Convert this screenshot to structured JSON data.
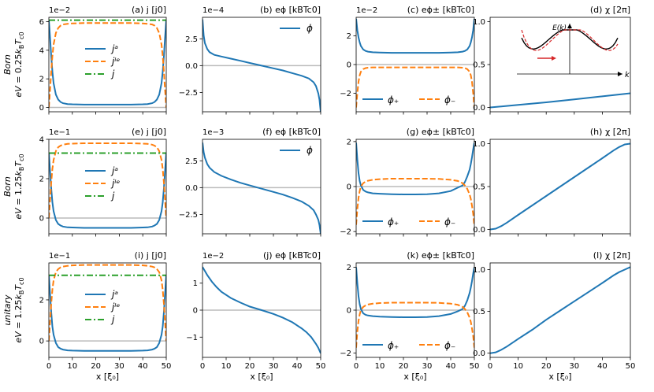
{
  "colors": {
    "ja": "#1f77b4",
    "jle": "#ff7f0e",
    "j": "#2ca02c",
    "zero": "#bbbbbb",
    "inset_black": "#000000",
    "inset_red": "#d62728",
    "arrow": "#d62728"
  },
  "x_axis": {
    "label": "x [ξ₀]",
    "ticks": [
      0,
      10,
      20,
      30,
      40,
      50
    ]
  },
  "rows": [
    {
      "ylabel_line1": "Born",
      "ylabel_line2": "eV = 0.25k B T c0"
    },
    {
      "ylabel_line1": "Born",
      "ylabel_line2": "eV = 1.25kBTc0"
    },
    {
      "ylabel_line1": "unitary",
      "ylabel_line2": "eV = 1.25kBTc0"
    }
  ],
  "row_labels": [
    {
      "line1": "Born",
      "line2_pre": "eV = 0.25",
      "line2_post": ""
    },
    {
      "line1": "Born",
      "line2_pre": "eV = 1.25",
      "line2_post": ""
    },
    {
      "line1": "unitary",
      "line2_pre": "eV = 1.25",
      "line2_post": ""
    }
  ],
  "chart_data": [
    {
      "id": "a",
      "title": "(a) j [j0]",
      "type": "line",
      "exponent": "1e−2",
      "xlim": [
        0,
        50
      ],
      "ylim": [
        -0.3,
        6.3
      ],
      "yticks": [
        0,
        2,
        4,
        6
      ],
      "x": [
        0,
        0.5,
        1,
        1.5,
        2,
        3,
        4,
        5,
        6,
        8,
        10,
        15,
        20,
        25,
        30,
        35,
        40,
        42,
        44,
        45,
        46,
        47,
        48,
        48.5,
        49,
        49.5,
        50
      ],
      "series": [
        {
          "name": "ja",
          "label": "jᵃ",
          "style": "solid",
          "y": [
            6.1,
            4.9,
            3.6,
            2.5,
            1.7,
            0.9,
            0.55,
            0.38,
            0.3,
            0.24,
            0.22,
            0.2,
            0.2,
            0.2,
            0.2,
            0.2,
            0.22,
            0.24,
            0.3,
            0.38,
            0.55,
            0.9,
            1.7,
            2.5,
            3.6,
            4.9,
            6.1
          ]
        },
        {
          "name": "jle",
          "label": "jˡᵉ",
          "style": "dashed",
          "y": [
            0,
            1.2,
            2.5,
            3.6,
            4.4,
            5.2,
            5.55,
            5.72,
            5.8,
            5.85,
            5.87,
            5.9,
            5.9,
            5.9,
            5.9,
            5.9,
            5.87,
            5.85,
            5.8,
            5.72,
            5.55,
            5.2,
            4.4,
            3.6,
            2.5,
            1.2,
            0
          ]
        },
        {
          "name": "j",
          "label": "j",
          "style": "dashdot",
          "y": [
            6.1,
            6.1,
            6.1,
            6.1,
            6.1,
            6.1,
            6.1,
            6.1,
            6.1,
            6.1,
            6.1,
            6.1,
            6.1,
            6.1,
            6.1,
            6.1,
            6.1,
            6.1,
            6.1,
            6.1,
            6.1,
            6.1,
            6.1,
            6.1,
            6.1,
            6.1,
            6.1
          ]
        }
      ],
      "legend": "center-left"
    },
    {
      "id": "b",
      "title": "(b) eϕ [kBTc0]",
      "type": "line",
      "exponent": "1e−4",
      "xlim": [
        0,
        50
      ],
      "ylim": [
        -4.3,
        4.5
      ],
      "yticks": [
        -2.5,
        0.0,
        2.5
      ],
      "x": [
        0,
        0.5,
        1,
        2,
        3,
        5,
        8,
        12,
        16,
        20,
        25,
        30,
        34,
        38,
        42,
        45,
        47,
        48,
        49,
        49.5,
        50
      ],
      "series": [
        {
          "name": "phi",
          "label": "ϕ",
          "style": "solid",
          "y": [
            4.3,
            2.8,
            2.1,
            1.55,
            1.25,
            1.0,
            0.85,
            0.65,
            0.45,
            0.25,
            0.0,
            -0.25,
            -0.45,
            -0.7,
            -0.95,
            -1.2,
            -1.55,
            -1.9,
            -2.6,
            -3.2,
            -4.3
          ]
        }
      ],
      "legend": "upper-right"
    },
    {
      "id": "c",
      "title": "(c) eϕ± [kBTc0]",
      "type": "line",
      "exponent": "1e−2",
      "xlim": [
        0,
        50
      ],
      "ylim": [
        -3.3,
        3.3
      ],
      "yticks": [
        -2,
        0,
        2
      ],
      "x": [
        0,
        0.5,
        1,
        1.5,
        2,
        3,
        4,
        5,
        7,
        10,
        15,
        20,
        25,
        30,
        35,
        40,
        43,
        45,
        46,
        47,
        48,
        48.5,
        49,
        49.5,
        50
      ],
      "series": [
        {
          "name": "phi_plus",
          "label": "ϕ₊",
          "style": "solid",
          "y": [
            3.2,
            2.4,
            1.9,
            1.55,
            1.3,
            1.05,
            0.95,
            0.9,
            0.86,
            0.84,
            0.82,
            0.82,
            0.82,
            0.82,
            0.82,
            0.84,
            0.86,
            0.9,
            0.95,
            1.05,
            1.3,
            1.55,
            1.9,
            2.4,
            3.2
          ]
        },
        {
          "name": "phi_minus",
          "label": "ϕ₋",
          "style": "dashed",
          "y": [
            -3.0,
            -2.0,
            -1.2,
            -0.75,
            -0.5,
            -0.32,
            -0.25,
            -0.22,
            -0.2,
            -0.2,
            -0.2,
            -0.2,
            -0.2,
            -0.2,
            -0.2,
            -0.2,
            -0.2,
            -0.22,
            -0.25,
            -0.32,
            -0.5,
            -0.75,
            -1.2,
            -2.0,
            -3.0
          ]
        }
      ],
      "legend": "lower-center"
    },
    {
      "id": "d",
      "title": "(d) χ [2π]",
      "type": "line",
      "exponent": "",
      "xlim": [
        0,
        50
      ],
      "ylim": [
        -0.05,
        1.05
      ],
      "yticks": [
        0.0,
        0.5,
        1.0
      ],
      "x": [
        0,
        10,
        20,
        30,
        40,
        50
      ],
      "series": [
        {
          "name": "chi",
          "label": "",
          "style": "solid",
          "y": [
            0.0,
            0.03,
            0.06,
            0.095,
            0.13,
            0.165
          ]
        }
      ],
      "legend": "none",
      "inset": {
        "ylabel": "E(k)",
        "xlabel": "k"
      }
    },
    {
      "id": "e",
      "title": "(e) j [j0]",
      "type": "line",
      "exponent": "1e−1",
      "xlim": [
        0,
        50
      ],
      "ylim": [
        -0.8,
        4.0
      ],
      "yticks": [
        0,
        2,
        4
      ],
      "x": [
        0,
        0.5,
        1,
        1.5,
        2,
        3,
        4,
        5,
        6,
        8,
        10,
        15,
        20,
        25,
        30,
        35,
        40,
        42,
        44,
        45,
        46,
        47,
        48,
        48.5,
        49,
        49.5,
        50
      ],
      "series": [
        {
          "name": "ja",
          "label": "jᵃ",
          "style": "solid",
          "y": [
            3.3,
            2.4,
            1.5,
            0.8,
            0.35,
            -0.1,
            -0.3,
            -0.38,
            -0.43,
            -0.47,
            -0.48,
            -0.5,
            -0.5,
            -0.5,
            -0.5,
            -0.5,
            -0.48,
            -0.47,
            -0.43,
            -0.38,
            -0.3,
            -0.1,
            0.35,
            0.8,
            1.5,
            2.4,
            3.3
          ]
        },
        {
          "name": "jle",
          "label": "jˡᵉ",
          "style": "dashed",
          "y": [
            0,
            0.9,
            1.8,
            2.5,
            2.95,
            3.4,
            3.6,
            3.68,
            3.73,
            3.77,
            3.78,
            3.8,
            3.8,
            3.8,
            3.8,
            3.8,
            3.78,
            3.77,
            3.73,
            3.68,
            3.6,
            3.4,
            2.95,
            2.5,
            1.8,
            0.9,
            0
          ]
        },
        {
          "name": "j",
          "label": "j",
          "style": "dashdot",
          "y": [
            3.3,
            3.3,
            3.3,
            3.3,
            3.3,
            3.3,
            3.3,
            3.3,
            3.3,
            3.3,
            3.3,
            3.3,
            3.3,
            3.3,
            3.3,
            3.3,
            3.3,
            3.3,
            3.3,
            3.3,
            3.3,
            3.3,
            3.3,
            3.3,
            3.3,
            3.3,
            3.3
          ]
        }
      ],
      "legend": "center-left"
    },
    {
      "id": "f",
      "title": "(f) eϕ [kBTc0]",
      "type": "line",
      "exponent": "1e−3",
      "xlim": [
        0,
        50
      ],
      "ylim": [
        -4.3,
        4.5
      ],
      "yticks": [
        -2.5,
        0.0,
        2.5
      ],
      "x": [
        0,
        0.5,
        1,
        2,
        3,
        5,
        8,
        12,
        16,
        20,
        25,
        30,
        34,
        38,
        42,
        45,
        47,
        48,
        49,
        49.5,
        50
      ],
      "series": [
        {
          "name": "phi",
          "label": "ϕ",
          "style": "solid",
          "y": [
            4.2,
            3.3,
            2.8,
            2.2,
            1.85,
            1.45,
            1.1,
            0.75,
            0.45,
            0.2,
            -0.1,
            -0.4,
            -0.65,
            -0.95,
            -1.3,
            -1.7,
            -2.1,
            -2.5,
            -3.0,
            -3.5,
            -4.3
          ]
        }
      ],
      "legend": "upper-right"
    },
    {
      "id": "g",
      "title": "(g) eϕ± [kBTc0]",
      "type": "line",
      "exponent": "",
      "xlim": [
        0,
        50
      ],
      "ylim": [
        -2.1,
        2.1
      ],
      "yticks": [
        -2,
        0,
        2
      ],
      "x": [
        0,
        0.5,
        1,
        1.5,
        2,
        3,
        4,
        5,
        7,
        10,
        15,
        20,
        25,
        30,
        35,
        40,
        43,
        45,
        46,
        47,
        48,
        48.5,
        49,
        49.5,
        50
      ],
      "series": [
        {
          "name": "phi_plus",
          "label": "ϕ₊",
          "style": "solid",
          "y": [
            1.95,
            1.2,
            0.6,
            0.25,
            0.05,
            -0.15,
            -0.22,
            -0.26,
            -0.3,
            -0.32,
            -0.34,
            -0.35,
            -0.35,
            -0.34,
            -0.3,
            -0.2,
            -0.05,
            0.05,
            0.2,
            0.45,
            0.75,
            1.0,
            1.3,
            1.65,
            1.95
          ]
        },
        {
          "name": "phi_minus",
          "label": "ϕ₋",
          "style": "dashed",
          "y": [
            -1.7,
            -1.0,
            -0.5,
            -0.2,
            0.0,
            0.15,
            0.22,
            0.26,
            0.3,
            0.33,
            0.35,
            0.35,
            0.35,
            0.35,
            0.34,
            0.3,
            0.25,
            0.15,
            0.05,
            -0.1,
            -0.35,
            -0.55,
            -0.85,
            -1.2,
            -1.75
          ]
        }
      ],
      "legend": "lower-center"
    },
    {
      "id": "h",
      "title": "(h) χ [2π]",
      "type": "line",
      "exponent": "",
      "xlim": [
        0,
        50
      ],
      "ylim": [
        -0.05,
        1.05
      ],
      "yticks": [
        0.0,
        0.5,
        1.0
      ],
      "x": [
        0,
        2,
        4,
        6,
        10,
        15,
        20,
        25,
        30,
        35,
        40,
        44,
        46,
        48,
        50
      ],
      "series": [
        {
          "name": "chi",
          "label": "",
          "style": "solid",
          "y": [
            0.0,
            0.01,
            0.04,
            0.08,
            0.17,
            0.28,
            0.39,
            0.5,
            0.61,
            0.72,
            0.83,
            0.92,
            0.96,
            0.99,
            1.0
          ]
        }
      ],
      "legend": "none"
    },
    {
      "id": "i",
      "title": "(i) j [j0]",
      "type": "line",
      "exponent": "1e−1",
      "xlim": [
        0,
        50
      ],
      "ylim": [
        -0.8,
        3.8
      ],
      "yticks": [
        0,
        2
      ],
      "x": [
        0,
        0.5,
        1,
        1.5,
        2,
        3,
        4,
        5,
        6,
        8,
        10,
        15,
        20,
        25,
        30,
        35,
        40,
        42,
        44,
        45,
        46,
        47,
        48,
        48.5,
        49,
        49.5,
        50
      ],
      "series": [
        {
          "name": "ja",
          "label": "jᵃ",
          "style": "solid",
          "y": [
            3.2,
            2.3,
            1.4,
            0.7,
            0.3,
            -0.1,
            -0.3,
            -0.38,
            -0.42,
            -0.46,
            -0.47,
            -0.48,
            -0.48,
            -0.48,
            -0.48,
            -0.48,
            -0.47,
            -0.46,
            -0.42,
            -0.38,
            -0.3,
            -0.1,
            0.3,
            0.7,
            1.4,
            2.3,
            3.2
          ]
        },
        {
          "name": "jle",
          "label": "jˡᵉ",
          "style": "dashed",
          "y": [
            0,
            0.9,
            1.8,
            2.5,
            2.95,
            3.35,
            3.5,
            3.58,
            3.62,
            3.66,
            3.68,
            3.7,
            3.7,
            3.7,
            3.7,
            3.7,
            3.68,
            3.66,
            3.62,
            3.58,
            3.5,
            3.35,
            2.95,
            2.5,
            1.8,
            0.9,
            0
          ]
        },
        {
          "name": "j",
          "label": "j",
          "style": "dashdot",
          "y": [
            3.2,
            3.2,
            3.2,
            3.2,
            3.2,
            3.2,
            3.2,
            3.2,
            3.2,
            3.2,
            3.2,
            3.2,
            3.2,
            3.2,
            3.2,
            3.2,
            3.2,
            3.2,
            3.2,
            3.2,
            3.2,
            3.2,
            3.2,
            3.2,
            3.2,
            3.2,
            3.2
          ]
        }
      ],
      "legend": "center-left"
    },
    {
      "id": "j",
      "title": "(j) eϕ [kBTc0]",
      "type": "line",
      "exponent": "1e−2",
      "xlim": [
        0,
        50
      ],
      "ylim": [
        -1.75,
        1.75
      ],
      "yticks": [
        -1,
        0,
        1
      ],
      "x": [
        0,
        1,
        2,
        4,
        6,
        8,
        12,
        16,
        20,
        25,
        30,
        34,
        38,
        42,
        44,
        46,
        48,
        49,
        50
      ],
      "series": [
        {
          "name": "phi",
          "label": "",
          "style": "solid",
          "y": [
            1.6,
            1.45,
            1.3,
            1.05,
            0.85,
            0.68,
            0.45,
            0.28,
            0.13,
            0.0,
            -0.14,
            -0.28,
            -0.45,
            -0.68,
            -0.82,
            -1.0,
            -1.25,
            -1.4,
            -1.6
          ]
        }
      ],
      "legend": "none"
    },
    {
      "id": "k",
      "title": "(k) eϕ± [kBTc0]",
      "type": "line",
      "exponent": "",
      "xlim": [
        0,
        50
      ],
      "ylim": [
        -2.2,
        2.2
      ],
      "yticks": [
        -2,
        0,
        2
      ],
      "x": [
        0,
        0.5,
        1,
        1.5,
        2,
        3,
        4,
        5,
        7,
        10,
        15,
        20,
        25,
        30,
        35,
        40,
        43,
        45,
        46,
        47,
        48,
        48.5,
        49,
        49.5,
        50
      ],
      "series": [
        {
          "name": "phi_plus",
          "label": "ϕ₊",
          "style": "solid",
          "y": [
            2.0,
            1.25,
            0.65,
            0.28,
            0.05,
            -0.15,
            -0.22,
            -0.25,
            -0.28,
            -0.3,
            -0.32,
            -0.33,
            -0.33,
            -0.32,
            -0.28,
            -0.18,
            -0.05,
            0.05,
            0.2,
            0.45,
            0.8,
            1.05,
            1.35,
            1.7,
            2.0
          ]
        },
        {
          "name": "phi_minus",
          "label": "ϕ₋",
          "style": "dashed",
          "y": [
            -1.75,
            -1.0,
            -0.5,
            -0.2,
            0.0,
            0.15,
            0.22,
            0.26,
            0.3,
            0.33,
            0.35,
            0.35,
            0.35,
            0.35,
            0.34,
            0.3,
            0.25,
            0.15,
            0.05,
            -0.1,
            -0.35,
            -0.55,
            -0.85,
            -1.2,
            -1.75
          ]
        }
      ],
      "legend": "lower-center"
    },
    {
      "id": "l",
      "title": "(l) χ [2π]",
      "type": "line",
      "exponent": "",
      "xlim": [
        0,
        50
      ],
      "ylim": [
        -0.05,
        1.08
      ],
      "yticks": [
        0.0,
        0.5,
        1.0
      ],
      "x": [
        0,
        2,
        4,
        6,
        10,
        15,
        20,
        25,
        30,
        35,
        40,
        44,
        46,
        48,
        50
      ],
      "series": [
        {
          "name": "chi",
          "label": "",
          "style": "solid",
          "y": [
            0.0,
            0.01,
            0.04,
            0.08,
            0.17,
            0.28,
            0.4,
            0.51,
            0.62,
            0.73,
            0.84,
            0.93,
            0.97,
            1.0,
            1.03
          ]
        }
      ],
      "legend": "none"
    }
  ]
}
